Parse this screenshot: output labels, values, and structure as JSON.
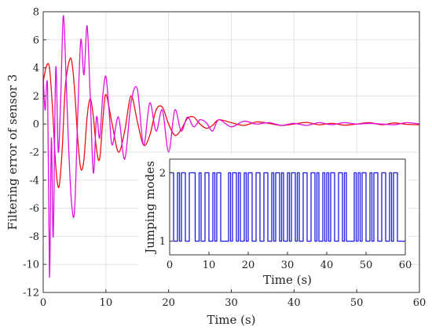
{
  "chart_data": [
    {
      "type": "line",
      "xlabel": "Time (s)",
      "ylabel": "Filtering error of sensor 3",
      "xlim": [
        0,
        60
      ],
      "ylim": [
        -12,
        8
      ],
      "xticks": [
        0,
        10,
        20,
        30,
        40,
        50,
        60
      ],
      "yticks": [
        -12,
        -10,
        -8,
        -6,
        -4,
        -2,
        0,
        2,
        4,
        6,
        8
      ],
      "grid": true,
      "series": [
        {
          "color": "#ee1010",
          "x": [
            0,
            0.5,
            1,
            1.5,
            2,
            2.5,
            3,
            3.5,
            4,
            4.5,
            5,
            5.5,
            6,
            6.5,
            7,
            7.5,
            8,
            8.5,
            9,
            9.5,
            10,
            11,
            12,
            13,
            14,
            15,
            16,
            17,
            18,
            19,
            20,
            21,
            22,
            23,
            24,
            25,
            26,
            27,
            28,
            30,
            32,
            34,
            36,
            38,
            40,
            42,
            44,
            46,
            48,
            50,
            52,
            54,
            56,
            58,
            60
          ],
          "y": [
            3.0,
            4.1,
            4.0,
            1.0,
            -3.0,
            -4.5,
            -2.0,
            2.5,
            4.2,
            4.6,
            2.5,
            -1.0,
            -3.2,
            -2.5,
            0.5,
            1.8,
            0.5,
            -1.8,
            -2.5,
            0.2,
            2.1,
            0.0,
            -2.0,
            -0.5,
            2.0,
            0.2,
            -1.5,
            -0.8,
            1.0,
            1.2,
            0.0,
            -0.8,
            -0.4,
            0.4,
            0.5,
            0.0,
            -0.3,
            -0.1,
            0.3,
            0.1,
            -0.1,
            0.15,
            0.05,
            -0.1,
            0.0,
            0.12,
            -0.05,
            0.05,
            -0.08,
            0.0,
            0.1,
            -0.05,
            0.08,
            -0.02,
            -0.05
          ]
        },
        {
          "color": "#e010e0",
          "x": [
            0,
            0.3,
            0.7,
            1,
            1.3,
            1.6,
            2,
            2.4,
            2.8,
            3.2,
            3.6,
            4,
            4.5,
            5,
            5.5,
            6,
            6.5,
            7,
            7.5,
            8,
            8.5,
            9,
            9.5,
            10,
            10.5,
            11,
            12,
            13,
            14,
            15,
            16,
            17,
            18,
            19,
            20,
            21,
            22,
            23,
            24,
            25,
            26,
            27,
            28,
            30,
            32,
            34,
            36,
            38,
            40,
            42,
            44,
            46,
            48,
            50,
            52,
            54,
            56,
            58,
            60
          ],
          "y": [
            3.5,
            1.0,
            2.5,
            -10.9,
            -1.0,
            -8.0,
            4.0,
            -2.0,
            2.0,
            7.7,
            4.0,
            -1.0,
            -5.5,
            -6.2,
            0.5,
            6.0,
            3.5,
            7.0,
            2.0,
            -3.5,
            0.5,
            -1.0,
            2.0,
            3.4,
            1.0,
            -1.5,
            0.5,
            -2.5,
            1.5,
            2.5,
            -1.5,
            1.5,
            -0.5,
            1.0,
            -2.0,
            1.0,
            -0.5,
            0.5,
            -0.2,
            0.3,
            0.1,
            -0.5,
            0.3,
            -0.2,
            0.2,
            0.0,
            0.1,
            -0.1,
            0.05,
            -0.1,
            0.1,
            -0.05,
            0.1,
            0.0,
            0.05,
            0.0,
            -0.05,
            0.1,
            0.0
          ]
        }
      ]
    },
    {
      "type": "line",
      "xlabel": "Time (s)",
      "ylabel": "Jumping modes",
      "xlim": [
        0,
        60
      ],
      "ylim": [
        0.8,
        2.2
      ],
      "xticks": [
        0,
        10,
        20,
        30,
        40,
        50,
        60
      ],
      "yticks": [
        1,
        2
      ],
      "grid": false,
      "series": [
        {
          "color": "#1a1ae0",
          "step": true,
          "x": [
            0,
            1,
            2,
            2.5,
            3,
            4,
            5,
            6.5,
            7.5,
            8,
            9,
            10,
            11,
            11.5,
            12,
            13,
            15,
            15.5,
            16,
            17,
            17.5,
            18,
            19,
            19.5,
            20,
            21,
            22,
            23,
            24,
            25,
            26,
            26.5,
            27,
            28,
            28.5,
            29,
            30,
            30.5,
            31,
            32,
            32.5,
            33,
            34,
            35,
            36,
            37,
            37.5,
            38,
            39,
            39.5,
            40,
            40.5,
            41,
            42,
            43,
            44,
            44.5,
            45,
            47,
            47.5,
            48,
            48.5,
            49,
            50,
            51,
            51.5,
            52,
            53,
            54,
            55,
            56,
            56.5,
            57,
            58,
            60
          ],
          "y": [
            2,
            1,
            2,
            1,
            2,
            1,
            2,
            1,
            2,
            1,
            2,
            1,
            2,
            1,
            2,
            1,
            2,
            1,
            2,
            1,
            2,
            1,
            2,
            1,
            2,
            1,
            2,
            1,
            2,
            1,
            2,
            1,
            2,
            1,
            2,
            1,
            2,
            1,
            2,
            1,
            2,
            1,
            2,
            1,
            2,
            1,
            2,
            1,
            2,
            1,
            2,
            1,
            2,
            1,
            2,
            1,
            2,
            1,
            2,
            1,
            2,
            1,
            2,
            1,
            2,
            1,
            2,
            1,
            2,
            1,
            2,
            1,
            2,
            1,
            1
          ]
        }
      ]
    }
  ]
}
